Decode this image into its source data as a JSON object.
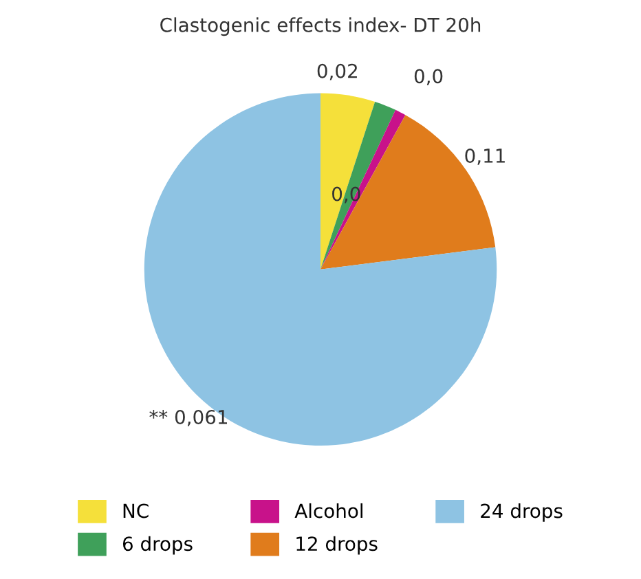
{
  "chart_data": {
    "type": "pie",
    "title": "Clastogenic effects index- DT 20h",
    "categories": [
      "NC",
      "6 drops",
      "Alcohol",
      "12 drops",
      "24 drops"
    ],
    "values": [
      5,
      2,
      1,
      15,
      77
    ],
    "annotations": [
      "0,02",
      "0,0",
      "0,0",
      "0,11",
      "** 0,061"
    ],
    "colors": [
      "#f5e03a",
      "#3fa05a",
      "#c8128a",
      "#e07c1c",
      "#8ec3e3"
    ],
    "legend": "bottom"
  }
}
